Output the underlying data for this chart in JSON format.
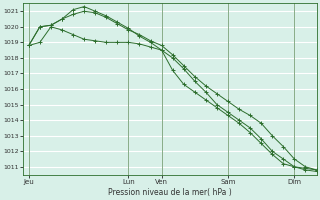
{
  "background_color": "#d8f0e8",
  "plot_bg_color": "#d8f0e8",
  "grid_color": "#ffffff",
  "line_color": "#2d6e2d",
  "ylabel": "Pression niveau de la mer( hPa )",
  "ylim": [
    1010.5,
    1021.5
  ],
  "yticks": [
    1011,
    1012,
    1013,
    1014,
    1015,
    1016,
    1017,
    1018,
    1019,
    1020,
    1021
  ],
  "x_day_labels": [
    "Jeu",
    "Lun",
    "Ven",
    "Sam",
    "Dim"
  ],
  "x_day_positions": [
    0,
    9,
    12,
    18,
    24
  ],
  "xlim": [
    -0.5,
    26
  ],
  "n_points": 27,
  "series1": [
    1018.8,
    1019.0,
    1020.0,
    1019.8,
    1019.5,
    1019.2,
    1019.1,
    1019.0,
    1019.0,
    1019.0,
    1018.9,
    1018.7,
    1018.5,
    1017.2,
    1016.3,
    1015.8,
    1015.3,
    1014.8,
    1014.3,
    1013.8,
    1013.2,
    1012.5,
    1011.8,
    1011.2,
    1011.0,
    1010.9,
    1010.8
  ],
  "series2": [
    1018.8,
    1020.0,
    1020.1,
    1020.5,
    1020.8,
    1021.0,
    1020.9,
    1020.6,
    1020.2,
    1019.8,
    1019.5,
    1019.1,
    1018.8,
    1018.2,
    1017.5,
    1016.8,
    1016.2,
    1015.7,
    1015.2,
    1014.7,
    1014.3,
    1013.8,
    1013.0,
    1012.3,
    1011.5,
    1011.0,
    1010.8
  ],
  "series3": [
    1018.8,
    1020.0,
    1020.1,
    1020.5,
    1021.1,
    1021.3,
    1021.0,
    1020.7,
    1020.3,
    1019.9,
    1019.4,
    1019.0,
    1018.5,
    1018.0,
    1017.3,
    1016.5,
    1015.8,
    1015.0,
    1014.5,
    1014.0,
    1013.5,
    1012.8,
    1012.0,
    1011.5,
    1011.0,
    1010.8,
    1010.7
  ]
}
